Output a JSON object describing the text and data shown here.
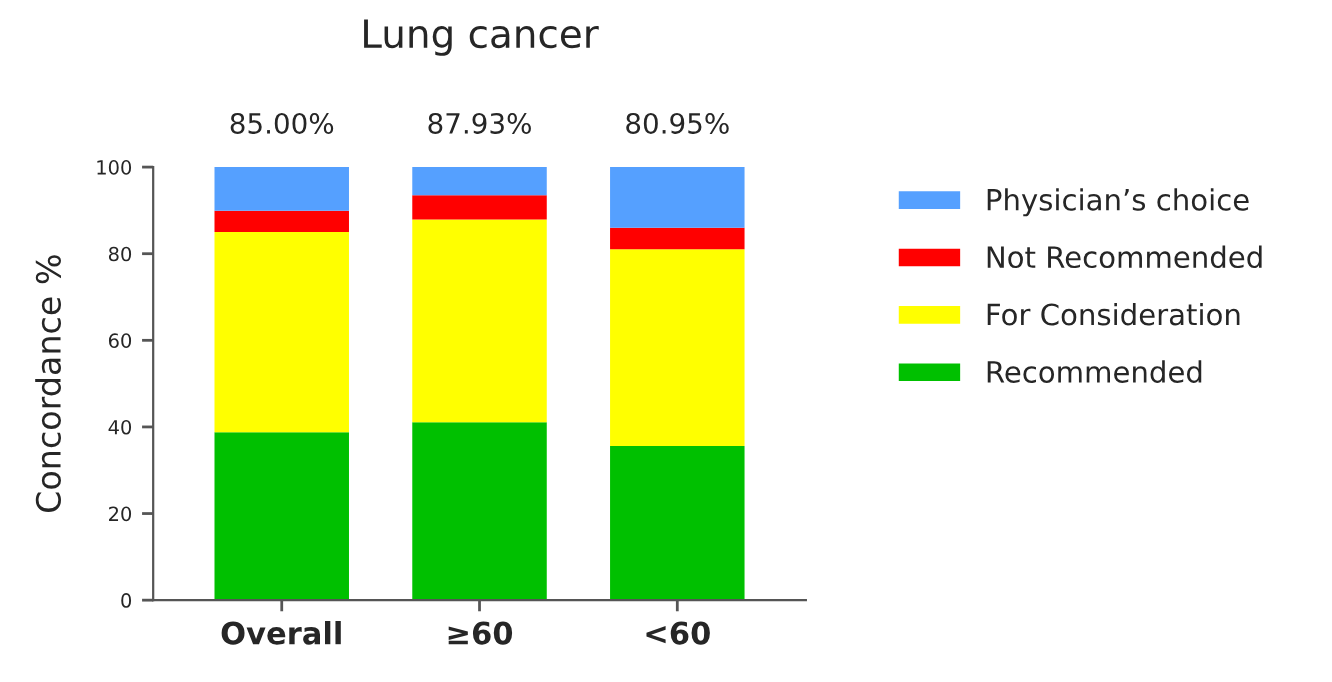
{
  "chart_data": {
    "type": "bar",
    "title": "Lung cancer",
    "ylabel": "Concordance %",
    "categories": [
      "Overall",
      "≥60",
      "<60"
    ],
    "stacked": true,
    "series": [
      {
        "name": "Recommended",
        "color": "#00c000",
        "values": [
          38.8,
          41.1,
          35.6
        ]
      },
      {
        "name": "For Consideration",
        "color": "#ffff00",
        "values": [
          46.2,
          46.8,
          45.4
        ]
      },
      {
        "name": "Not Recommended",
        "color": "#ff0000",
        "values": [
          4.9,
          5.6,
          5.0
        ]
      },
      {
        "name": "Physician’s choice",
        "color": "#55a0ff",
        "values": [
          10.1,
          6.5,
          14.0
        ]
      }
    ],
    "annotations": [
      {
        "text": "85.00%",
        "x": "Overall",
        "y": 100
      },
      {
        "text": "87.93%",
        "x": "≥60",
        "y": 100
      },
      {
        "text": "80.95%",
        "x": "<60",
        "y": 100
      }
    ],
    "ylim": [
      0,
      100
    ],
    "yticks": [
      0,
      20,
      40,
      60,
      80,
      100
    ],
    "grid": false,
    "legend": "right"
  }
}
